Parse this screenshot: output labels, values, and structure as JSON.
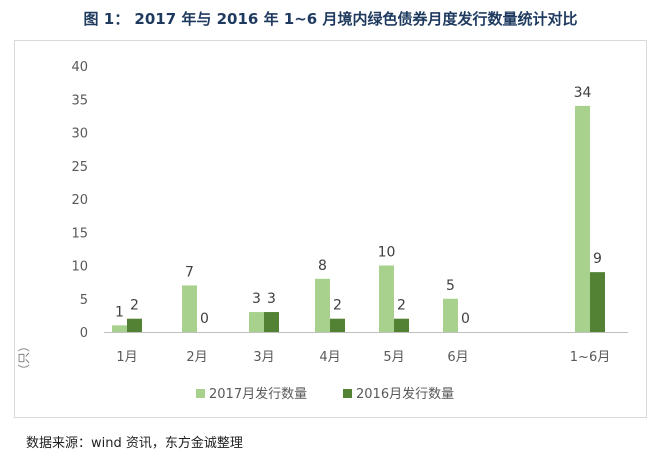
{
  "title": "图 1： 2017 年与 2016 年 1~6 月境内绿色债券月度发行数量统计对比",
  "source": "数据来源：wind 资讯，东方金诚整理",
  "chart_data": {
    "type": "bar",
    "categories": [
      "1月",
      "2月",
      "3月",
      "4月",
      "5月",
      "6月",
      "1~6月"
    ],
    "series": [
      {
        "name": "2017月发行数量",
        "values": [
          1,
          7,
          3,
          8,
          10,
          5,
          34
        ],
        "color": "#a9d18e"
      },
      {
        "name": "2016月发行数量",
        "values": [
          2,
          0,
          3,
          2,
          2,
          0,
          9
        ],
        "color": "#548235"
      }
    ],
    "ylabel": "（只）",
    "ylim": [
      0,
      40
    ],
    "yticks": [
      0,
      5,
      10,
      15,
      20,
      25,
      30,
      35,
      40
    ],
    "legend_position": "bottom",
    "grid": false
  }
}
